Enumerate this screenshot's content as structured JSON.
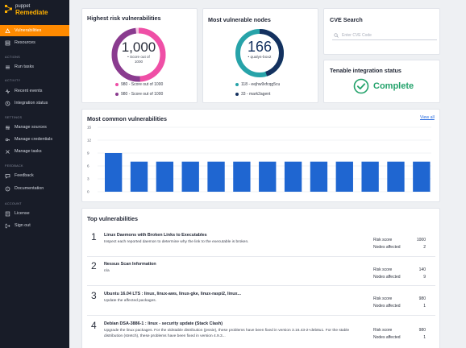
{
  "brand": {
    "small": "puppet",
    "big": "Remediate"
  },
  "sidebar": {
    "top_items": [
      {
        "label": "Vulnerabilities",
        "icon": "vulnerabilities-icon",
        "active": true
      },
      {
        "label": "Resources",
        "icon": "resources-icon",
        "active": false
      }
    ],
    "sections": [
      {
        "label": "ACTIONS",
        "items": [
          {
            "label": "Run tasks",
            "icon": "run-tasks-icon"
          }
        ]
      },
      {
        "label": "ACTIVITY",
        "items": [
          {
            "label": "Recent events",
            "icon": "recent-events-icon"
          },
          {
            "label": "Integration status",
            "icon": "integration-status-icon"
          }
        ]
      },
      {
        "label": "SETTINGS",
        "items": [
          {
            "label": "Manage sources",
            "icon": "manage-sources-icon"
          },
          {
            "label": "Manage credentials",
            "icon": "manage-credentials-icon"
          },
          {
            "label": "Manage tasks",
            "icon": "manage-tasks-icon"
          }
        ]
      },
      {
        "label": "FEEDBACK",
        "items": [
          {
            "label": "Feedback",
            "icon": "feedback-icon"
          },
          {
            "label": "Documentation",
            "icon": "documentation-icon"
          }
        ]
      },
      {
        "label": "ACCOUNT",
        "items": [
          {
            "label": "License",
            "icon": "license-icon"
          },
          {
            "label": "Sign out",
            "icon": "sign-out-icon"
          }
        ]
      }
    ]
  },
  "risk_card": {
    "title": "Highest risk vulnerabilities",
    "value": "1,000",
    "caption_line1": "• Score out of",
    "caption_line2": "1000",
    "fraction": 0.98,
    "legend": [
      "980 - Score out of 1000",
      "980 - Score out of 1000"
    ],
    "colors": {
      "primary": "#ef4fa6",
      "secondary": "#8a3b8f",
      "track": "#f6c7e1"
    }
  },
  "nodes_card": {
    "title": "Most vulnerable nodes",
    "value": "166",
    "caption": "• qualys-box2",
    "fraction": 0.45,
    "legend": [
      "118 - eejhw9xfcqg5cu",
      "33 - mark2agent"
    ],
    "colors": {
      "primary": "#27a3a9",
      "secondary": "#14315f",
      "track": "#bfe3e5"
    }
  },
  "cve_search": {
    "title": "CVE Search",
    "placeholder": "Enter CVE Code"
  },
  "tenable": {
    "title": "Tenable integration status",
    "status": "Complete",
    "color": "#23a26b"
  },
  "chart_card": {
    "title": "Most common vulnerabilities",
    "view_all": "View all",
    "chart_data": {
      "type": "bar",
      "title": "Most common vulnerabilities",
      "categories": [
        "",
        "",
        "",
        "",
        "",
        "",
        "",
        "",
        "",
        "",
        "",
        "",
        ""
      ],
      "values": [
        9,
        7,
        7,
        7,
        7,
        7,
        7,
        7,
        7,
        7,
        7,
        7,
        7
      ],
      "ylim": [
        0,
        15
      ],
      "yticks": [
        0,
        3,
        6,
        9,
        12,
        15
      ],
      "color": "#1f66d1",
      "grid": true
    }
  },
  "top_vulns": {
    "title": "Top vulnerabilities",
    "rows": [
      {
        "num": "1",
        "title": "Linux Daemons with Broken Links to Executables",
        "desc": "Inspect each reported daemon to determine why the link to the executable is broken.",
        "risk_label": "Risk score",
        "risk": "1000",
        "nodes_label": "Nodes affected",
        "nodes": "2"
      },
      {
        "num": "2",
        "title": "Nessus Scan Information",
        "desc": "n/a",
        "risk_label": "Risk score",
        "risk": "140",
        "nodes_label": "Nodes affected",
        "nodes": "9"
      },
      {
        "num": "3",
        "title": "Ubuntu 16.04 LTS : linux, linux-aws, linux-gke, linux-raspi2, linux...",
        "desc": "Update the affected packages.",
        "risk_label": "Risk score",
        "risk": "980",
        "nodes_label": "Nodes affected",
        "nodes": "1"
      },
      {
        "num": "4",
        "title": "Debian DSA-3886-1 : linux - security update (Stack Clash)",
        "desc": "Upgrade the linux packages. For the oldstable distribution (jessie), these problems have been fixed in version 3.16.43-2+deb8u1. For the stable distribution (stretch), these problems have been fixed in version 4.9.3...",
        "risk_label": "Risk score",
        "risk": "980",
        "nodes_label": "Nodes affected",
        "nodes": "1"
      }
    ]
  }
}
